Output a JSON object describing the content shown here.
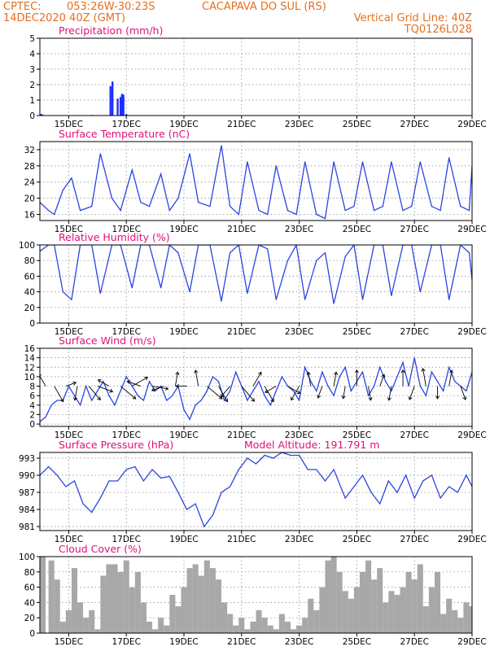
{
  "header": {
    "source": "CPTEC:",
    "coords": "053:26W-30:23S",
    "station": "CACAPAVA DO SUL (RS)",
    "datetime": "14DEC2020 40Z (GMT)",
    "grid_note": "Vertical Grid Line: 40Z",
    "run_code": "TQ0126L028"
  },
  "x_axis": {
    "start_day": 14.0,
    "end_day": 29.0,
    "tick_days": [
      15,
      17,
      19,
      21,
      23,
      25,
      27,
      29
    ],
    "tick_labels": [
      "15DEC",
      "17DEC",
      "19DEC",
      "21DEC",
      "23DEC",
      "25DEC",
      "27DEC",
      "29DEC"
    ]
  },
  "chart_data": [
    {
      "type": "bar",
      "title": "Precipitation (mm/h)",
      "ylim": [
        0,
        5
      ],
      "yticks": [
        0,
        1,
        2,
        3,
        4,
        5
      ],
      "color": "#1f2fff",
      "points": [
        [
          14.05,
          0.1
        ],
        [
          14.1,
          0.05
        ],
        [
          15.8,
          0.04
        ],
        [
          16.2,
          0.03
        ],
        [
          16.45,
          1.9
        ],
        [
          16.52,
          2.2
        ],
        [
          16.7,
          1.1
        ],
        [
          16.8,
          1.2
        ],
        [
          16.85,
          1.4
        ],
        [
          16.9,
          1.35
        ],
        [
          17.0,
          0.1
        ],
        [
          17.5,
          0.03
        ],
        [
          20.2,
          0.02
        ],
        [
          22.6,
          0.03
        ],
        [
          25.8,
          0.03
        ],
        [
          27.3,
          0.02
        ],
        [
          28.6,
          0.02
        ]
      ]
    },
    {
      "type": "line",
      "title": "Surface Temperature (nC)",
      "ylim": [
        14.5,
        34
      ],
      "yticks": [
        16,
        20,
        24,
        28,
        32
      ],
      "color": "#2a45e0",
      "x": [
        14.0,
        14.3,
        14.5,
        14.8,
        15.1,
        15.4,
        15.8,
        16.1,
        16.5,
        16.8,
        17.2,
        17.5,
        17.8,
        18.2,
        18.5,
        18.8,
        19.2,
        19.5,
        19.9,
        20.3,
        20.6,
        20.9,
        21.2,
        21.6,
        21.9,
        22.2,
        22.6,
        22.9,
        23.2,
        23.6,
        23.9,
        24.2,
        24.6,
        24.9,
        25.2,
        25.6,
        25.9,
        26.2,
        26.6,
        26.9,
        27.2,
        27.6,
        27.9,
        28.2,
        28.6,
        28.9,
        29.0
      ],
      "y": [
        19,
        17,
        16,
        22,
        25,
        17,
        18,
        31,
        20,
        17,
        27,
        19,
        18,
        26,
        17,
        20,
        31,
        19,
        18,
        33,
        18,
        16,
        29,
        17,
        16,
        28,
        17,
        16,
        29,
        16,
        15,
        29,
        17,
        18,
        29,
        17,
        18,
        29,
        17,
        18,
        29,
        18,
        17,
        30,
        18,
        17,
        28
      ]
    },
    {
      "type": "line",
      "title": "Relative Humidity (%)",
      "ylim": [
        0,
        100
      ],
      "yticks": [
        0,
        20,
        40,
        60,
        80,
        100
      ],
      "color": "#2a45e0",
      "x": [
        14.0,
        14.3,
        14.5,
        14.8,
        15.1,
        15.4,
        15.8,
        16.1,
        16.5,
        16.8,
        17.2,
        17.5,
        17.8,
        18.2,
        18.5,
        18.8,
        19.2,
        19.5,
        19.9,
        20.3,
        20.6,
        20.9,
        21.2,
        21.6,
        21.9,
        22.2,
        22.6,
        22.9,
        23.2,
        23.6,
        23.9,
        24.2,
        24.6,
        24.9,
        25.2,
        25.6,
        25.9,
        26.2,
        26.6,
        26.9,
        27.2,
        27.6,
        27.9,
        28.2,
        28.6,
        28.9,
        29.0
      ],
      "y": [
        92,
        100,
        100,
        40,
        30,
        100,
        100,
        38,
        100,
        100,
        45,
        100,
        100,
        45,
        100,
        90,
        40,
        100,
        100,
        28,
        90,
        100,
        38,
        100,
        95,
        30,
        80,
        100,
        30,
        80,
        90,
        25,
        85,
        100,
        30,
        100,
        100,
        35,
        100,
        100,
        40,
        100,
        100,
        30,
        100,
        90,
        55
      ]
    },
    {
      "type": "line",
      "title": "Surface Wind (m/s)",
      "ylim": [
        -0.5,
        16
      ],
      "yticks": [
        0,
        2,
        4,
        6,
        8,
        10,
        12,
        14,
        16
      ],
      "color": "#2a45e0",
      "x": [
        14.0,
        14.2,
        14.4,
        14.6,
        14.8,
        15.0,
        15.2,
        15.4,
        15.6,
        15.8,
        16.0,
        16.2,
        16.4,
        16.6,
        16.8,
        17.0,
        17.2,
        17.4,
        17.6,
        17.8,
        18.0,
        18.2,
        18.4,
        18.6,
        18.8,
        19.0,
        19.2,
        19.4,
        19.6,
        19.8,
        20.0,
        20.2,
        20.4,
        20.6,
        20.8,
        21.0,
        21.2,
        21.4,
        21.6,
        21.8,
        22.0,
        22.2,
        22.4,
        22.6,
        22.8,
        23.0,
        23.2,
        23.4,
        23.6,
        23.8,
        24.0,
        24.2,
        24.4,
        24.6,
        24.8,
        25.0,
        25.2,
        25.4,
        25.6,
        25.8,
        26.0,
        26.2,
        26.4,
        26.6,
        26.8,
        27.0,
        27.2,
        27.4,
        27.6,
        27.8,
        28.0,
        28.2,
        28.4,
        28.6,
        28.8,
        29.0
      ],
      "y": [
        0.5,
        1.5,
        4,
        5,
        5,
        8,
        6,
        4,
        8,
        5,
        7,
        9,
        6,
        4,
        7,
        10,
        8,
        6,
        5,
        9,
        7,
        8,
        5,
        6,
        8,
        3,
        1,
        4,
        5,
        7,
        10,
        9,
        5,
        7,
        11,
        8,
        5,
        7,
        9,
        6,
        4,
        7,
        10,
        8,
        7,
        5,
        12,
        9,
        7,
        11,
        8,
        6,
        10,
        12,
        7,
        9,
        11,
        6,
        8,
        12,
        9,
        7,
        10,
        13,
        8,
        14,
        8,
        6,
        11,
        9,
        7,
        12,
        9,
        8,
        7,
        11
      ]
    },
    {
      "type": "line",
      "title": "Surface Pressure (hPa)",
      "ylim": [
        980.3,
        994
      ],
      "yticks": [
        981,
        984,
        987,
        990,
        993
      ],
      "color": "#2a45e0",
      "x": [
        14.0,
        14.3,
        14.6,
        14.9,
        15.2,
        15.5,
        15.8,
        16.1,
        16.4,
        16.7,
        17.0,
        17.3,
        17.6,
        17.9,
        18.2,
        18.5,
        18.8,
        19.1,
        19.4,
        19.7,
        20.0,
        20.3,
        20.6,
        20.9,
        21.2,
        21.5,
        21.8,
        22.1,
        22.4,
        22.7,
        23.0,
        23.3,
        23.6,
        23.9,
        24.2,
        24.6,
        24.9,
        25.2,
        25.5,
        25.8,
        26.1,
        26.4,
        26.7,
        27.0,
        27.3,
        27.6,
        27.9,
        28.2,
        28.5,
        28.8,
        29.0
      ],
      "y": [
        990,
        991.5,
        990,
        988,
        989,
        985,
        983.5,
        986,
        989,
        989,
        991,
        991.5,
        989,
        991,
        989.5,
        989.8,
        987,
        984,
        985,
        981,
        983,
        987,
        988,
        991,
        993,
        992,
        993.5,
        993,
        994,
        993.5,
        993.5,
        991,
        991,
        989,
        991,
        986,
        988,
        990,
        987,
        985,
        989,
        987,
        990,
        986,
        989,
        990,
        986,
        988,
        987,
        990,
        988
      ]
    },
    {
      "type": "bar",
      "title": "Cloud Cover (%)",
      "ylim": [
        0,
        100
      ],
      "yticks": [
        0,
        20,
        40,
        60,
        80,
        100
      ],
      "color": "#a8a8a8",
      "x": [
        14.0,
        14.3,
        14.5,
        14.7,
        14.9,
        15.1,
        15.3,
        15.5,
        15.7,
        15.9,
        16.1,
        16.3,
        16.5,
        16.7,
        16.9,
        17.1,
        17.3,
        17.5,
        17.7,
        17.9,
        18.1,
        18.3,
        18.5,
        18.7,
        18.9,
        19.1,
        19.3,
        19.5,
        19.7,
        19.9,
        20.1,
        20.3,
        20.5,
        20.7,
        20.9,
        21.1,
        21.3,
        21.5,
        21.7,
        21.9,
        22.1,
        22.3,
        22.5,
        22.7,
        22.9,
        23.1,
        23.3,
        23.5,
        23.7,
        23.9,
        24.1,
        24.3,
        24.5,
        24.7,
        24.9,
        25.1,
        25.3,
        25.5,
        25.7,
        25.9,
        26.1,
        26.3,
        26.5,
        26.7,
        26.9,
        27.1,
        27.3,
        27.5,
        27.7,
        27.9,
        28.1,
        28.3,
        28.5,
        28.7,
        28.9
      ],
      "y": [
        100,
        95,
        70,
        15,
        30,
        85,
        40,
        20,
        30,
        5,
        75,
        90,
        90,
        80,
        95,
        60,
        80,
        40,
        15,
        5,
        20,
        10,
        50,
        35,
        60,
        85,
        90,
        75,
        95,
        85,
        70,
        40,
        25,
        10,
        20,
        5,
        15,
        30,
        20,
        10,
        5,
        25,
        15,
        5,
        10,
        20,
        45,
        30,
        60,
        95,
        100,
        80,
        55,
        45,
        60,
        80,
        95,
        70,
        85,
        40,
        55,
        50,
        60,
        80,
        70,
        90,
        35,
        60,
        80,
        25,
        45,
        30,
        20,
        40,
        35
      ]
    }
  ],
  "panel_extra": {
    "model_altitude": "Model Altitude: 191.791 m"
  },
  "wind_arrows": [
    {
      "day": 14.2,
      "speed": 8,
      "dir_deg": 120
    },
    {
      "day": 14.5,
      "speed": 10,
      "dir_deg": 300
    },
    {
      "day": 14.9,
      "speed": 6,
      "dir_deg": 20
    },
    {
      "day": 15.3,
      "speed": 8,
      "dir_deg": 260
    },
    {
      "day": 15.7,
      "speed": 10,
      "dir_deg": 310
    },
    {
      "day": 16.0,
      "speed": 9,
      "dir_deg": 340
    },
    {
      "day": 16.4,
      "speed": 7,
      "dir_deg": 150
    },
    {
      "day": 16.8,
      "speed": 11,
      "dir_deg": 320
    },
    {
      "day": 17.2,
      "speed": 10,
      "dir_deg": 30
    },
    {
      "day": 17.5,
      "speed": 8,
      "dir_deg": 160
    },
    {
      "day": 17.9,
      "speed": 9,
      "dir_deg": 350
    },
    {
      "day": 18.3,
      "speed": 7,
      "dir_deg": 200
    },
    {
      "day": 18.7,
      "speed": 8,
      "dir_deg": 80
    },
    {
      "day": 19.1,
      "speed": 6,
      "dir_deg": 180
    },
    {
      "day": 19.5,
      "speed": 9,
      "dir_deg": 100
    },
    {
      "day": 19.8,
      "speed": 11,
      "dir_deg": 320
    },
    {
      "day": 20.2,
      "speed": 10,
      "dir_deg": 300
    },
    {
      "day": 20.6,
      "speed": 8,
      "dir_deg": 230
    },
    {
      "day": 21.0,
      "speed": 11,
      "dir_deg": 310
    },
    {
      "day": 21.4,
      "speed": 9,
      "dir_deg": 60
    },
    {
      "day": 21.8,
      "speed": 10,
      "dir_deg": 300
    },
    {
      "day": 22.2,
      "speed": 7,
      "dir_deg": 210
    },
    {
      "day": 22.6,
      "speed": 8,
      "dir_deg": 330
    },
    {
      "day": 23.0,
      "speed": 9,
      "dir_deg": 240
    },
    {
      "day": 23.4,
      "speed": 8,
      "dir_deg": 100
    },
    {
      "day": 23.8,
      "speed": 7,
      "dir_deg": 250
    },
    {
      "day": 24.2,
      "speed": 8,
      "dir_deg": 80
    },
    {
      "day": 24.6,
      "speed": 7,
      "dir_deg": 260
    },
    {
      "day": 25.0,
      "speed": 9,
      "dir_deg": 90
    },
    {
      "day": 25.4,
      "speed": 8,
      "dir_deg": 280
    },
    {
      "day": 25.8,
      "speed": 7,
      "dir_deg": 70
    },
    {
      "day": 26.2,
      "speed": 8,
      "dir_deg": 260
    },
    {
      "day": 26.6,
      "speed": 9,
      "dir_deg": 90
    },
    {
      "day": 27.0,
      "speed": 8,
      "dir_deg": 250
    },
    {
      "day": 27.4,
      "speed": 10,
      "dir_deg": 100
    },
    {
      "day": 27.8,
      "speed": 7,
      "dir_deg": 270
    },
    {
      "day": 28.2,
      "speed": 9,
      "dir_deg": 80
    },
    {
      "day": 28.6,
      "speed": 8,
      "dir_deg": 290
    }
  ]
}
